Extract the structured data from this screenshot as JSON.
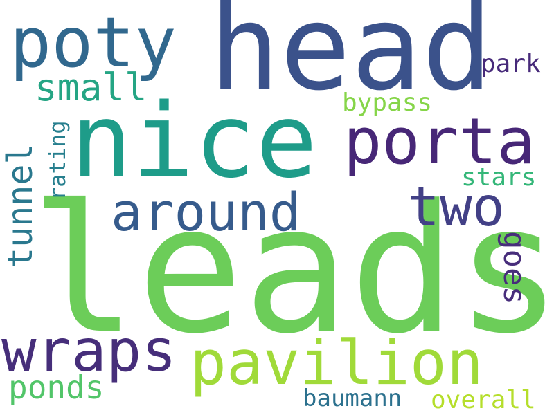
{
  "words": [
    {
      "text": "leads",
      "color": "#6ccd59"
    },
    {
      "text": "head",
      "color": "#3b528b"
    },
    {
      "text": "nice",
      "color": "#1e9c89"
    },
    {
      "text": "porta",
      "color": "#472777"
    },
    {
      "text": "poty",
      "color": "#31688e"
    },
    {
      "text": "pavilion",
      "color": "#a0da39"
    },
    {
      "text": "wraps",
      "color": "#462e7a"
    },
    {
      "text": "around",
      "color": "#365b8c"
    },
    {
      "text": "two",
      "color": "#424086"
    },
    {
      "text": "small",
      "color": "#25a584"
    },
    {
      "text": "tunnel",
      "color": "#2a788e"
    },
    {
      "text": "ponds",
      "color": "#52c569"
    },
    {
      "text": "goes",
      "color": "#472d7b"
    },
    {
      "text": "park",
      "color": "#472a7a"
    },
    {
      "text": "bypass",
      "color": "#86d549"
    },
    {
      "text": "stars",
      "color": "#35b779"
    },
    {
      "text": "rating",
      "color": "#277f8e"
    },
    {
      "text": "baumann",
      "color": "#2c718e"
    },
    {
      "text": "overall",
      "color": "#b5de2b"
    }
  ]
}
